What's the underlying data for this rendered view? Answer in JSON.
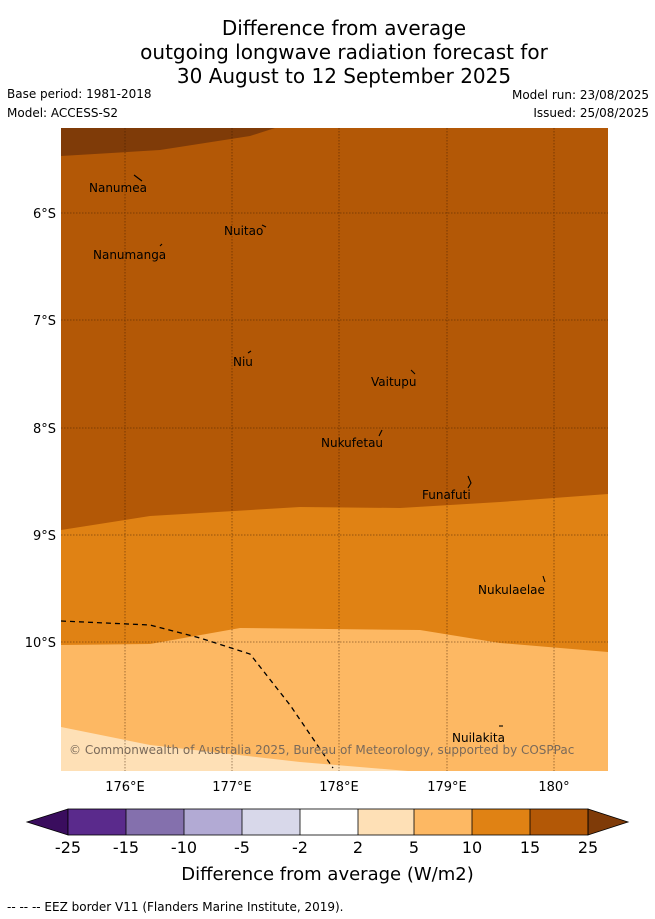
{
  "header": {
    "title_lines": [
      "Difference from average",
      "outgoing longwave radiation forecast for",
      "30 August to 12 September 2025"
    ],
    "base_period": "Base period: 1981-2018",
    "model": "Model: ACCESS-S2",
    "model_run": "Model run: 23/08/2025",
    "issued": "Issued: 25/08/2025"
  },
  "map": {
    "lat_ticks": [
      "6°S",
      "7°S",
      "8°S",
      "9°S",
      "10°S"
    ],
    "lon_ticks": [
      "176°E",
      "177°E",
      "178°E",
      "179°E",
      "180°"
    ],
    "places": [
      {
        "name": "Nanumea",
        "lon": 175.65,
        "lat": -5.75
      },
      {
        "name": "Nuitao",
        "lon": 177.1,
        "lat": -6.15
      },
      {
        "name": "Nanumanga",
        "lon": 175.9,
        "lat": -6.35
      },
      {
        "name": "Niu",
        "lon": 177.15,
        "lat": -7.35
      },
      {
        "name": "Vaitupu",
        "lon": 178.5,
        "lat": -7.55
      },
      {
        "name": "Nukufetau",
        "lon": 178.1,
        "lat": -8.1
      },
      {
        "name": "Funafuti",
        "lon": 178.95,
        "lat": -8.6
      },
      {
        "name": "Nukulaelae",
        "lon": 179.5,
        "lat": -9.5
      },
      {
        "name": "Nuilakita",
        "lon": 179.3,
        "lat": -10.95
      }
    ],
    "copyright": "© Commonwealth of Australia 2025, Bureau of Meteorology, supported by COSPPac"
  },
  "colorbar": {
    "ticks": [
      "-25",
      "-15",
      "-10",
      "-5",
      "-2",
      "2",
      "5",
      "10",
      "15",
      "25"
    ],
    "colors": [
      "#3a0d5e",
      "#5a2a8c",
      "#8470ad",
      "#b2aad4",
      "#d8d8ea",
      "#ffffff",
      "#fee0b6",
      "#fdb863",
      "#e08214",
      "#b35806",
      "#7f3b08"
    ],
    "label": "Difference from average (W/m2)"
  },
  "legend_note": "-- -- -- EEZ border V11 (Flanders Marine Institute, 2019)."
}
